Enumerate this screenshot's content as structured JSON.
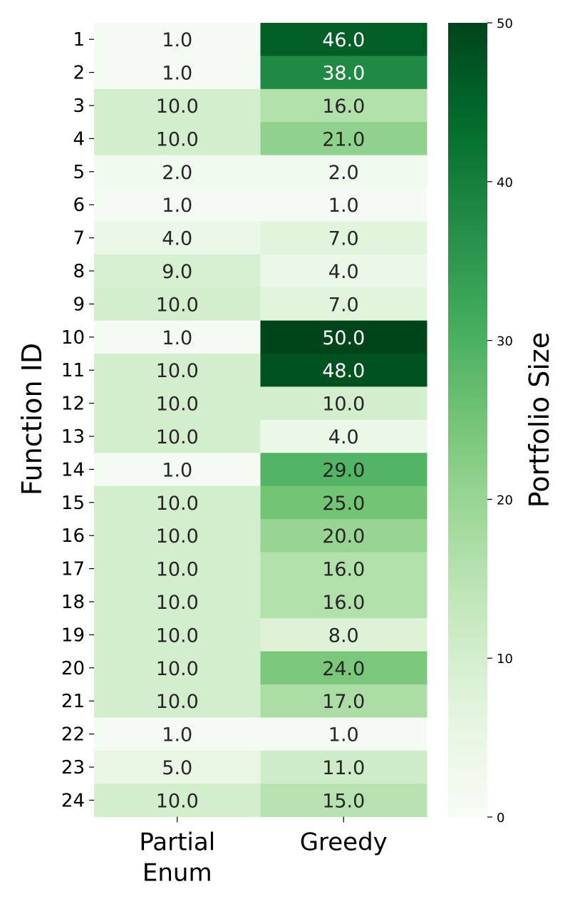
{
  "chart_data": {
    "type": "heatmap",
    "title": "",
    "xlabel": "",
    "ylabel": "Function ID",
    "colorbar_label": "Portfolio Size",
    "colormap": "Greens",
    "vmin": 0,
    "vmax": 50,
    "colorbar_ticks": [
      0,
      10,
      20,
      30,
      40,
      50
    ],
    "columns": [
      "Partial\nEnum",
      "Greedy"
    ],
    "rows": [
      "1",
      "2",
      "3",
      "4",
      "5",
      "6",
      "7",
      "8",
      "9",
      "10",
      "11",
      "12",
      "13",
      "14",
      "15",
      "16",
      "17",
      "18",
      "19",
      "20",
      "21",
      "22",
      "23",
      "24"
    ],
    "values": [
      [
        1.0,
        46.0
      ],
      [
        1.0,
        38.0
      ],
      [
        10.0,
        16.0
      ],
      [
        10.0,
        21.0
      ],
      [
        2.0,
        2.0
      ],
      [
        1.0,
        1.0
      ],
      [
        4.0,
        7.0
      ],
      [
        9.0,
        4.0
      ],
      [
        10.0,
        7.0
      ],
      [
        1.0,
        50.0
      ],
      [
        10.0,
        48.0
      ],
      [
        10.0,
        10.0
      ],
      [
        10.0,
        4.0
      ],
      [
        1.0,
        29.0
      ],
      [
        10.0,
        25.0
      ],
      [
        10.0,
        20.0
      ],
      [
        10.0,
        16.0
      ],
      [
        10.0,
        16.0
      ],
      [
        10.0,
        8.0
      ],
      [
        10.0,
        24.0
      ],
      [
        10.0,
        17.0
      ],
      [
        1.0,
        1.0
      ],
      [
        5.0,
        11.0
      ],
      [
        10.0,
        15.0
      ]
    ],
    "grid": false
  }
}
